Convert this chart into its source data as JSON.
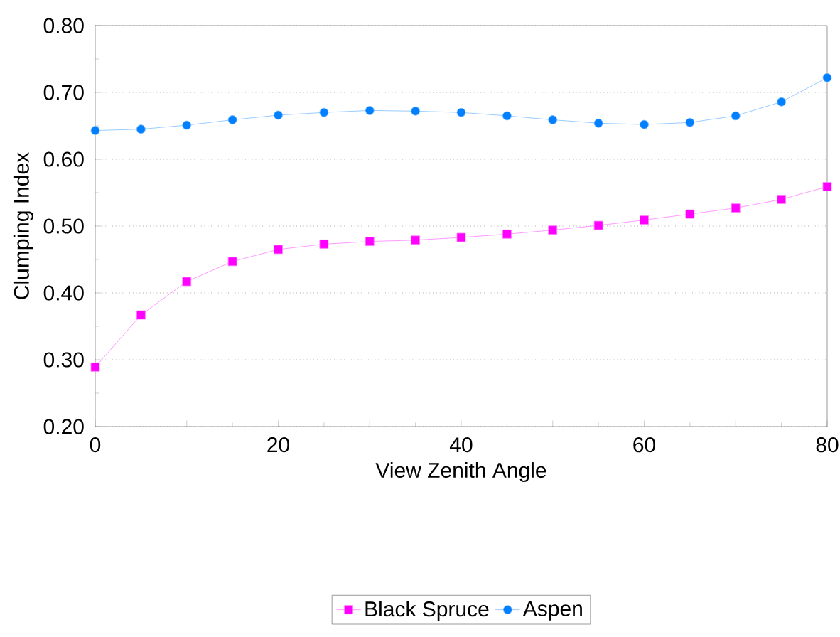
{
  "chart_data": {
    "type": "line",
    "xlabel": "View Zenith Angle",
    "ylabel": "Clumping Index",
    "x": [
      0,
      5,
      10,
      15,
      20,
      25,
      30,
      35,
      40,
      45,
      50,
      55,
      60,
      65,
      70,
      75,
      80
    ],
    "series": [
      {
        "name": "Black Spruce",
        "color": "#ff00ff",
        "marker": "square",
        "values": [
          0.289,
          0.367,
          0.417,
          0.447,
          0.465,
          0.473,
          0.477,
          0.479,
          0.483,
          0.488,
          0.494,
          0.501,
          0.509,
          0.518,
          0.527,
          0.54,
          0.559
        ]
      },
      {
        "name": "Aspen",
        "color": "#0080ff",
        "marker": "circle",
        "values": [
          0.643,
          0.645,
          0.651,
          0.659,
          0.666,
          0.67,
          0.673,
          0.672,
          0.67,
          0.665,
          0.659,
          0.654,
          0.652,
          0.655,
          0.665,
          0.686,
          0.722
        ]
      }
    ],
    "xlim": [
      0,
      80
    ],
    "xticks": [
      {
        "value": 0,
        "label": "0"
      },
      {
        "value": 10,
        "label": null
      },
      {
        "value": 20,
        "label": "20"
      },
      {
        "value": 30,
        "label": null
      },
      {
        "value": 40,
        "label": "40"
      },
      {
        "value": 50,
        "label": null
      },
      {
        "value": 60,
        "label": "60"
      },
      {
        "value": 70,
        "label": null
      },
      {
        "value": 80,
        "label": "80"
      }
    ],
    "ylim": [
      0.2,
      0.8
    ],
    "yticks": [
      {
        "value": 0.2,
        "label": "0.20"
      },
      {
        "value": 0.3,
        "label": "0.30"
      },
      {
        "value": 0.4,
        "label": "0.40"
      },
      {
        "value": 0.5,
        "label": "0.50"
      },
      {
        "value": 0.6,
        "label": "0.60"
      },
      {
        "value": 0.7,
        "label": "0.70"
      },
      {
        "value": 0.8,
        "label": "0.80"
      }
    ],
    "grid": "y",
    "legend": "bottom"
  }
}
